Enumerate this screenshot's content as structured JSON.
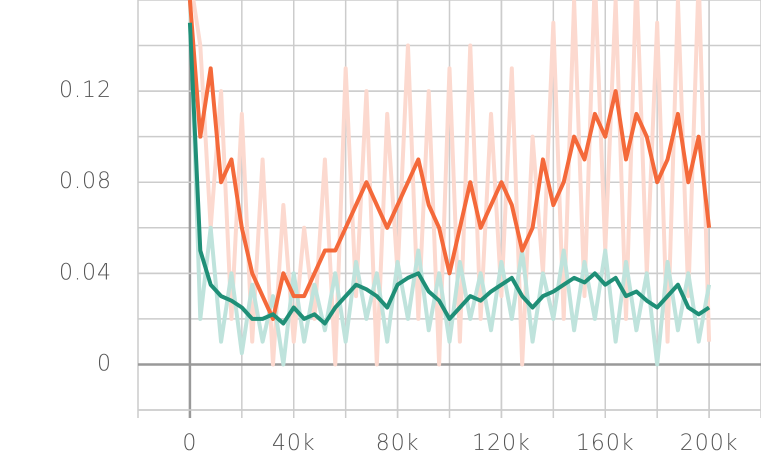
{
  "chart_data": {
    "type": "line",
    "x": [
      0,
      4000,
      8000,
      12000,
      16000,
      20000,
      24000,
      28000,
      32000,
      36000,
      40000,
      44000,
      48000,
      52000,
      56000,
      60000,
      64000,
      68000,
      72000,
      76000,
      80000,
      84000,
      88000,
      92000,
      96000,
      100000,
      104000,
      108000,
      112000,
      116000,
      120000,
      124000,
      128000,
      132000,
      136000,
      140000,
      144000,
      148000,
      152000,
      156000,
      160000,
      164000,
      168000,
      172000,
      176000,
      180000,
      184000,
      188000,
      192000,
      196000,
      200000
    ],
    "series": [
      {
        "color": "#fcd9cf",
        "values": [
          0.17,
          0.14,
          0.06,
          0.12,
          0.02,
          0.11,
          0.01,
          0.09,
          0.0,
          0.07,
          0.01,
          0.06,
          0.02,
          0.09,
          0.0,
          0.13,
          0.03,
          0.12,
          0.0,
          0.11,
          0.04,
          0.14,
          0.02,
          0.12,
          0.0,
          0.13,
          0.01,
          0.14,
          0.02,
          0.11,
          0.03,
          0.13,
          0.0,
          0.1,
          0.04,
          0.15,
          0.02,
          0.16,
          0.03,
          0.17,
          0.05,
          0.16,
          0.02,
          0.17,
          0.04,
          0.15,
          0.01,
          0.16,
          0.03,
          0.17,
          0.01
        ]
      },
      {
        "color": "#bfe3dc",
        "values": [
          0.16,
          0.02,
          0.06,
          0.01,
          0.04,
          0.005,
          0.035,
          0.01,
          0.03,
          0.0,
          0.04,
          0.01,
          0.035,
          0.015,
          0.04,
          0.01,
          0.045,
          0.02,
          0.04,
          0.01,
          0.045,
          0.02,
          0.05,
          0.015,
          0.04,
          0.01,
          0.045,
          0.02,
          0.04,
          0.015,
          0.045,
          0.02,
          0.05,
          0.01,
          0.04,
          0.02,
          0.05,
          0.015,
          0.045,
          0.02,
          0.05,
          0.01,
          0.045,
          0.015,
          0.04,
          0.0,
          0.045,
          0.015,
          0.04,
          0.01,
          0.035
        ]
      },
      {
        "color": "#f4693a",
        "values": [
          0.16,
          0.1,
          0.13,
          0.08,
          0.09,
          0.06,
          0.04,
          0.03,
          0.02,
          0.04,
          0.03,
          0.03,
          0.04,
          0.05,
          0.05,
          0.06,
          0.07,
          0.08,
          0.07,
          0.06,
          0.07,
          0.08,
          0.09,
          0.07,
          0.06,
          0.04,
          0.06,
          0.08,
          0.06,
          0.07,
          0.08,
          0.07,
          0.05,
          0.06,
          0.09,
          0.07,
          0.08,
          0.1,
          0.09,
          0.11,
          0.1,
          0.12,
          0.09,
          0.11,
          0.1,
          0.08,
          0.09,
          0.11,
          0.08,
          0.1,
          0.06
        ]
      },
      {
        "color": "#1f8f77",
        "values": [
          0.15,
          0.05,
          0.035,
          0.03,
          0.028,
          0.025,
          0.02,
          0.02,
          0.022,
          0.018,
          0.025,
          0.02,
          0.022,
          0.018,
          0.025,
          0.03,
          0.035,
          0.033,
          0.03,
          0.025,
          0.035,
          0.038,
          0.04,
          0.032,
          0.028,
          0.02,
          0.025,
          0.03,
          0.028,
          0.032,
          0.035,
          0.038,
          0.03,
          0.025,
          0.03,
          0.032,
          0.035,
          0.038,
          0.036,
          0.04,
          0.035,
          0.038,
          0.03,
          0.032,
          0.028,
          0.025,
          0.03,
          0.035,
          0.025,
          0.022,
          0.025
        ]
      }
    ],
    "xlim": [
      -20000,
      220000
    ],
    "ylim": [
      -0.02,
      0.16
    ],
    "xticks": [
      {
        "value": 0,
        "label": "0"
      },
      {
        "value": 40000,
        "label": "40k"
      },
      {
        "value": 80000,
        "label": "80k"
      },
      {
        "value": 120000,
        "label": "120k"
      },
      {
        "value": 160000,
        "label": "160k"
      },
      {
        "value": 200000,
        "label": "200k"
      }
    ],
    "yticks": [
      0,
      0.04,
      0.08,
      0.12
    ],
    "grid": true
  }
}
